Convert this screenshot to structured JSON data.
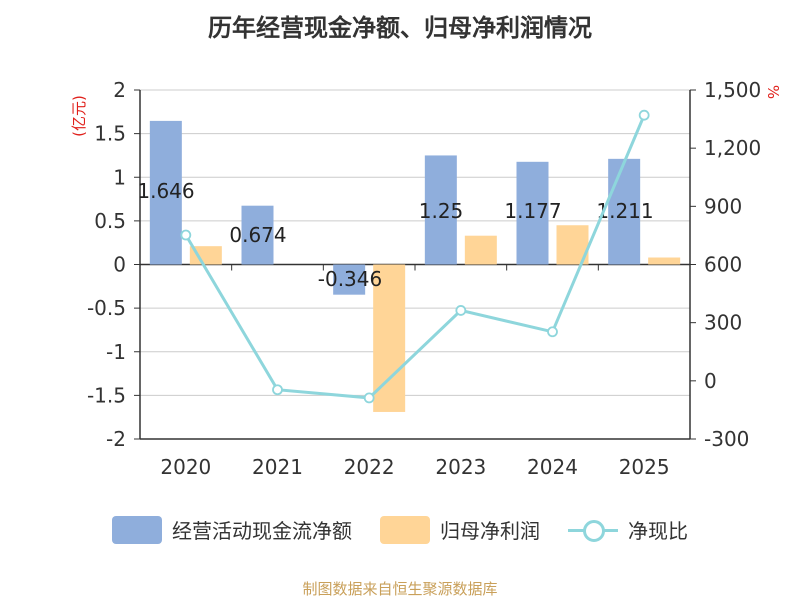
{
  "chart_data": {
    "type": "bar",
    "title": "历年经营现金净额、归母净利润情况",
    "categories": [
      "2020",
      "2021",
      "2022",
      "2023",
      "2024",
      "2025"
    ],
    "series": [
      {
        "name": "经营活动现金流净额",
        "kind": "bar",
        "axis": "left",
        "color": "#8FAEDC",
        "values": [
          1.646,
          0.674,
          -0.346,
          1.25,
          1.177,
          1.211
        ],
        "labels": [
          "1.646",
          "0.674",
          "-0.346",
          "1.25",
          "1.177",
          "1.211"
        ]
      },
      {
        "name": "归母净利润",
        "kind": "bar",
        "axis": "left",
        "color": "#FFD597",
        "values": [
          0.21,
          0,
          -1.69,
          0.33,
          0.45,
          0.08
        ]
      },
      {
        "name": "净现比",
        "kind": "line",
        "axis": "right",
        "color": "#8ED6DC",
        "values": [
          752,
          -46,
          -88,
          363,
          253,
          1370
        ]
      }
    ],
    "left_axis": {
      "label": "(亿元)",
      "min": -2,
      "max": 2,
      "ticks": [
        "2",
        "1.5",
        "1",
        "0.5",
        "0",
        "-0.5",
        "-1",
        "-1.5",
        "-2"
      ]
    },
    "right_axis": {
      "label": "%",
      "min": -300,
      "max": 1500,
      "ticks": [
        "1,500",
        "1,200",
        "900",
        "600",
        "300",
        "0",
        "-300"
      ]
    },
    "source": "制图数据来自恒生聚源数据库"
  }
}
